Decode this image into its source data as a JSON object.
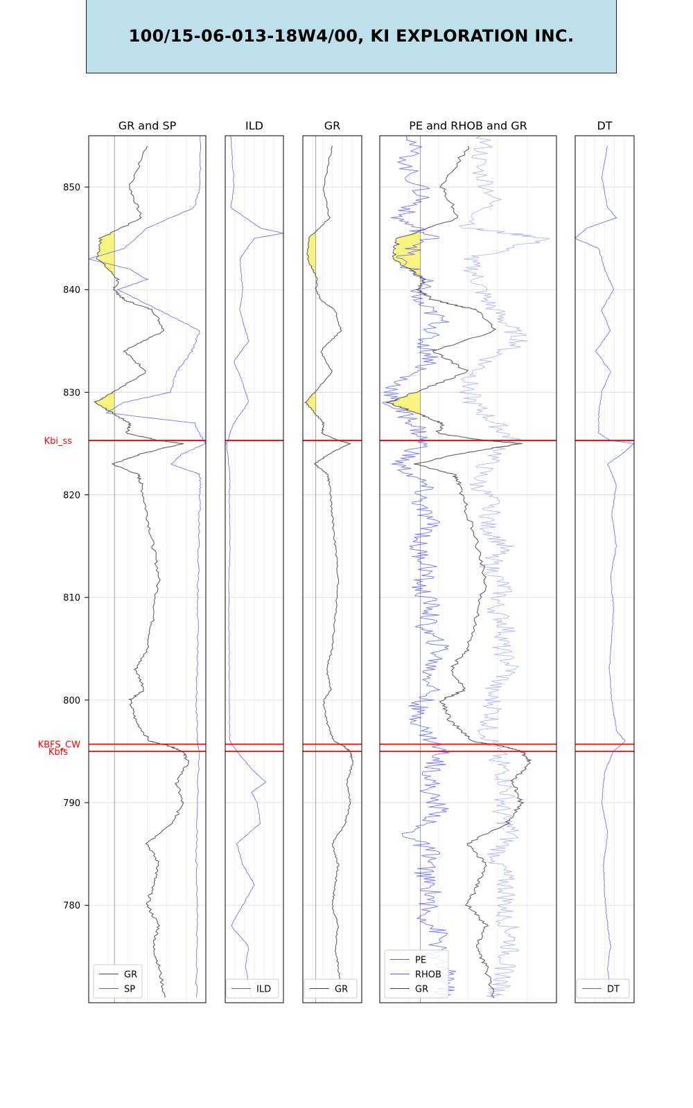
{
  "header": {
    "title": "100/15-06-013-18W4/00, KI EXPLORATION INC."
  },
  "chart_data": {
    "type": "line",
    "title": "100/15-06-013-18W4/00, KI EXPLORATION INC.",
    "depth_axis": {
      "range": [
        770.5,
        855
      ],
      "inverted": false,
      "ticks": [
        780,
        790,
        800,
        810,
        820,
        830,
        840,
        850
      ],
      "tick_labels": [
        "780",
        "790",
        "800",
        "810",
        "820",
        "830",
        "840",
        "850"
      ]
    },
    "formation_tops": [
      {
        "name": "Kbi_ss",
        "depth": 825.3
      },
      {
        "name": "KBFS_CW",
        "depth": 795.7
      },
      {
        "name": "Kbfs",
        "depth": 795.0
      }
    ],
    "colors": {
      "gr": "#444444",
      "blue": "#5a5aff",
      "fill": "#f6f36a",
      "tops": "#ff0000",
      "grid": "#d9d9d9"
    },
    "tracks": [
      {
        "title": "GR and SP",
        "legend": [
          "GR",
          "SP"
        ],
        "legend_position": "lower-left",
        "cutoff": 0.22,
        "curves": [
          {
            "name": "GR",
            "color": "#444444",
            "depths": [
              854,
              850,
              847,
              845,
              843,
              841,
              840,
              839,
              838,
              836,
              834,
              832,
              830,
              829,
              828,
              827,
              826,
              825.3,
              825,
              824,
              823,
              822,
              821,
              818,
              815,
              812,
              808,
              805,
              803,
              801,
              800,
              798,
              796,
              795.5,
              795,
              794,
              792,
              790,
              788,
              786,
              784,
              782,
              780,
              778,
              776,
              774,
              771
            ],
            "values": [
              0.5,
              0.35,
              0.45,
              0.1,
              0.08,
              0.25,
              0.22,
              0.3,
              0.55,
              0.65,
              0.3,
              0.5,
              0.2,
              0.05,
              0.2,
              0.35,
              0.33,
              0.6,
              0.8,
              0.45,
              0.2,
              0.42,
              0.45,
              0.5,
              0.55,
              0.6,
              0.55,
              0.5,
              0.4,
              0.48,
              0.35,
              0.4,
              0.52,
              0.7,
              0.8,
              0.85,
              0.75,
              0.8,
              0.72,
              0.5,
              0.6,
              0.55,
              0.5,
              0.6,
              0.55,
              0.6,
              0.65
            ]
          },
          {
            "name": "SP",
            "color": "#5a5aff",
            "depths": [
              855,
              850,
              848,
              846,
              844,
              843,
              842,
              841,
              840,
              838,
              836,
              834,
              832,
              830,
              829,
              828,
              827,
              825.5,
              825,
              824,
              823,
              822,
              820,
              815,
              810,
              805,
              800,
              796,
              795,
              790,
              785,
              780,
              775,
              771
            ],
            "values": [
              0.95,
              0.95,
              0.9,
              0.5,
              0.3,
              0.0,
              0.35,
              0.5,
              0.25,
              0.6,
              0.95,
              0.88,
              0.75,
              0.7,
              0.3,
              0.15,
              0.9,
              0.97,
              1.0,
              0.8,
              0.7,
              0.95,
              0.95,
              0.94,
              0.93,
              0.93,
              0.92,
              0.93,
              0.94,
              0.93,
              0.92,
              0.93,
              0.92,
              0.92
            ]
          }
        ]
      },
      {
        "title": "ILD",
        "legend": [
          "ILD"
        ],
        "legend_position": "lower-right",
        "curves": [
          {
            "name": "ILD",
            "color": "#5a5aff",
            "depths": [
              855,
              850,
              848,
              846,
              845.5,
              845,
              843,
              840,
              838,
              835,
              833,
              831,
              829,
              827,
              826,
              825.3,
              825,
              822,
              820,
              815,
              810,
              805,
              800,
              796,
              795,
              793,
              792,
              791,
              790,
              788,
              786,
              784,
              782,
              780,
              778,
              776,
              774,
              771
            ],
            "values": [
              0.1,
              0.15,
              0.1,
              0.6,
              1.0,
              0.5,
              0.25,
              0.3,
              0.25,
              0.4,
              0.15,
              0.3,
              0.4,
              0.15,
              0.08,
              0.05,
              0.02,
              0.08,
              0.07,
              0.08,
              0.06,
              0.07,
              0.07,
              0.08,
              0.2,
              0.5,
              0.7,
              0.45,
              0.55,
              0.6,
              0.2,
              0.3,
              0.5,
              0.3,
              0.1,
              0.4,
              0.35,
              0.45
            ]
          }
        ]
      },
      {
        "title": "GR",
        "legend": [
          "GR"
        ],
        "legend_position": "lower-right",
        "cutoff": 0.22,
        "curves": [
          {
            "name": "GR",
            "color": "#444444",
            "depths": [
              854,
              850,
              847,
              845,
              843,
              841,
              840,
              839,
              838,
              836,
              834,
              832,
              830,
              829,
              828,
              827,
              826,
              825.3,
              825,
              824,
              823,
              822,
              821,
              818,
              815,
              812,
              808,
              805,
              803,
              801,
              800,
              798,
              796,
              795.5,
              795,
              794,
              792,
              790,
              788,
              786,
              784,
              782,
              780,
              778,
              776,
              774,
              771
            ],
            "values": [
              0.5,
              0.35,
              0.45,
              0.1,
              0.08,
              0.25,
              0.22,
              0.3,
              0.55,
              0.65,
              0.3,
              0.5,
              0.2,
              0.05,
              0.2,
              0.35,
              0.33,
              0.6,
              0.8,
              0.45,
              0.2,
              0.42,
              0.45,
              0.5,
              0.55,
              0.6,
              0.55,
              0.5,
              0.4,
              0.48,
              0.35,
              0.4,
              0.52,
              0.7,
              0.8,
              0.85,
              0.75,
              0.8,
              0.72,
              0.5,
              0.6,
              0.55,
              0.5,
              0.6,
              0.55,
              0.6,
              0.65
            ]
          }
        ]
      },
      {
        "title": "PE and RHOB and GR",
        "legend": [
          "PE",
          "RHOB",
          "GR"
        ],
        "legend_position": "lower-left",
        "cutoff": 0.23,
        "curves": [
          {
            "name": "PE",
            "color": "#5a5aff",
            "depths": [
              855,
              852,
              849,
              847,
              845,
              843,
              841,
              839,
              837,
              835,
              833,
              831,
              829,
              827,
              825,
              823,
              821,
              819,
              817,
              815,
              813,
              811,
              809,
              807,
              805,
              803,
              801,
              799,
              797,
              795,
              793,
              791,
              789,
              787,
              785,
              783,
              781,
              779,
              777,
              775,
              773,
              771
            ],
            "values": [
              0.2,
              0.15,
              0.25,
              0.1,
              0.3,
              0.1,
              0.25,
              0.2,
              0.35,
              0.25,
              0.3,
              0.1,
              0.05,
              0.2,
              0.25,
              0.1,
              0.25,
              0.22,
              0.3,
              0.2,
              0.28,
              0.22,
              0.3,
              0.25,
              0.35,
              0.28,
              0.3,
              0.2,
              0.25,
              0.35,
              0.3,
              0.28,
              0.35,
              0.15,
              0.3,
              0.25,
              0.3,
              0.25,
              0.35,
              0.3,
              0.4,
              0.35
            ]
          },
          {
            "name": "RHOB",
            "color": "#5a5aff",
            "depths": [
              855,
              852,
              849,
              846,
              845,
              843,
              841,
              839,
              837,
              835,
              833,
              831,
              829,
              827,
              825.3,
              823,
              821,
              819,
              817,
              815,
              813,
              811,
              809,
              807,
              805,
              803,
              801,
              799,
              797,
              795,
              793,
              791,
              789,
              787,
              785,
              783,
              781,
              779,
              777,
              775,
              773,
              771
            ],
            "values": [
              0.6,
              0.55,
              0.65,
              0.5,
              0.95,
              0.5,
              0.55,
              0.6,
              0.7,
              0.8,
              0.6,
              0.5,
              0.52,
              0.65,
              0.75,
              0.6,
              0.55,
              0.65,
              0.6,
              0.7,
              0.62,
              0.7,
              0.65,
              0.72,
              0.68,
              0.75,
              0.62,
              0.65,
              0.6,
              0.66,
              0.7,
              0.72,
              0.68,
              0.75,
              0.66,
              0.7,
              0.72,
              0.7,
              0.75,
              0.72,
              0.7,
              0.65
            ]
          },
          {
            "name": "GR",
            "color": "#444444",
            "depths": [
              854,
              850,
              847,
              845,
              843,
              841,
              840,
              839,
              838,
              836,
              834,
              832,
              830,
              829,
              828,
              827,
              826,
              825.3,
              825,
              824,
              823,
              822,
              821,
              818,
              815,
              812,
              808,
              805,
              803,
              801,
              800,
              798,
              796,
              795.5,
              795,
              794,
              792,
              790,
              788,
              786,
              784,
              782,
              780,
              778,
              776,
              774,
              771
            ],
            "values": [
              0.5,
              0.35,
              0.45,
              0.1,
              0.08,
              0.25,
              0.22,
              0.3,
              0.55,
              0.65,
              0.3,
              0.5,
              0.2,
              0.05,
              0.2,
              0.35,
              0.33,
              0.6,
              0.8,
              0.45,
              0.2,
              0.42,
              0.45,
              0.5,
              0.55,
              0.6,
              0.55,
              0.5,
              0.4,
              0.48,
              0.35,
              0.4,
              0.52,
              0.7,
              0.8,
              0.85,
              0.75,
              0.8,
              0.72,
              0.5,
              0.6,
              0.55,
              0.5,
              0.6,
              0.55,
              0.6,
              0.65
            ]
          }
        ]
      },
      {
        "title": "DT",
        "legend": [
          "DT"
        ],
        "legend_position": "lower-right",
        "curves": [
          {
            "name": "DT",
            "color": "#5a5aff",
            "depths": [
              854,
              851,
              848,
              847,
              846,
              845,
              844,
              842,
              840,
              838,
              836,
              834,
              832,
              830,
              828,
              826,
              825.3,
              825,
              824,
              823,
              821,
              818,
              815,
              812,
              809,
              806,
              803,
              800,
              797,
              796,
              795,
              793,
              790,
              787,
              784,
              781,
              778,
              776,
              774,
              771
            ],
            "values": [
              0.55,
              0.45,
              0.55,
              0.7,
              0.2,
              0.0,
              0.4,
              0.5,
              0.65,
              0.45,
              0.6,
              0.35,
              0.6,
              0.45,
              0.4,
              0.4,
              0.6,
              1.0,
              0.8,
              0.55,
              0.7,
              0.62,
              0.7,
              0.6,
              0.65,
              0.62,
              0.58,
              0.62,
              0.7,
              0.85,
              0.65,
              0.5,
              0.45,
              0.55,
              0.48,
              0.5,
              0.55,
              0.6,
              0.55,
              0.6
            ]
          }
        ]
      }
    ]
  }
}
